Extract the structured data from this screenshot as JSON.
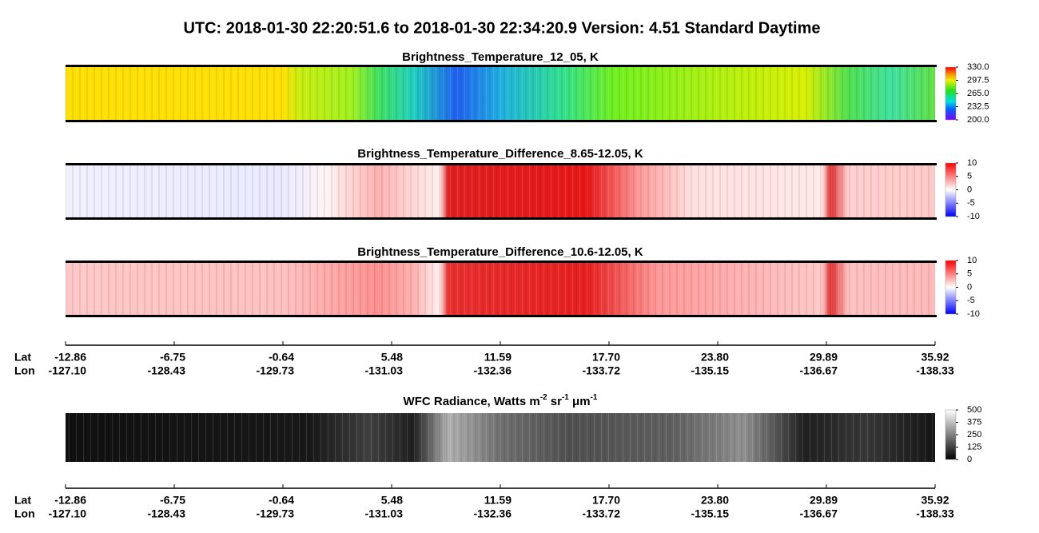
{
  "title": "UTC:  2018-01-30   22:20:51.6  to  2018-01-30   22:34:20.9    Version: 4.51  Standard Daytime",
  "panels": [
    {
      "title": "Brightness_Temperature_12_05, K",
      "colorbar": {
        "lim": [
          200,
          330
        ],
        "ticks": [
          {
            "value": 200,
            "label": "200.0"
          },
          {
            "value": 232.5,
            "label": "232.5"
          },
          {
            "value": 265,
            "label": "265.0"
          },
          {
            "value": 297.5,
            "label": "297.5"
          },
          {
            "value": 330,
            "label": "330.0"
          }
        ]
      }
    },
    {
      "title": "Brightness_Temperature_Difference_8.65-12.05, K",
      "colorbar": {
        "lim": [
          -10,
          10
        ],
        "ticks": [
          -10,
          -5,
          0,
          5,
          10
        ]
      }
    },
    {
      "title": "Brightness_Temperature_Difference_10.6-12.05, K",
      "colorbar": {
        "lim": [
          -10,
          10
        ],
        "ticks": [
          -10,
          -5,
          0,
          5,
          10
        ]
      }
    },
    {
      "title_parts": [
        "WFC Radiance, Watts m",
        "-2",
        " sr",
        "-1",
        " μm",
        "-1"
      ],
      "colorbar": {
        "lim": [
          0,
          500
        ],
        "ticks": [
          0,
          125,
          250,
          375,
          500
        ]
      }
    }
  ],
  "axis": {
    "lat_label": "Lat",
    "lon_label": "Lon",
    "lat": [
      -12.86,
      -6.75,
      -0.64,
      5.48,
      11.59,
      {
        "value": 17.7,
        "label": "17.70"
      },
      {
        "value": 23.8,
        "label": "23.80"
      },
      29.89,
      35.92
    ],
    "lon": [
      {
        "value": -127.1,
        "label": "-127.10"
      },
      -128.43,
      -129.73,
      -131.03,
      -132.36,
      -133.72,
      -135.15,
      -136.67,
      -138.33
    ]
  }
}
